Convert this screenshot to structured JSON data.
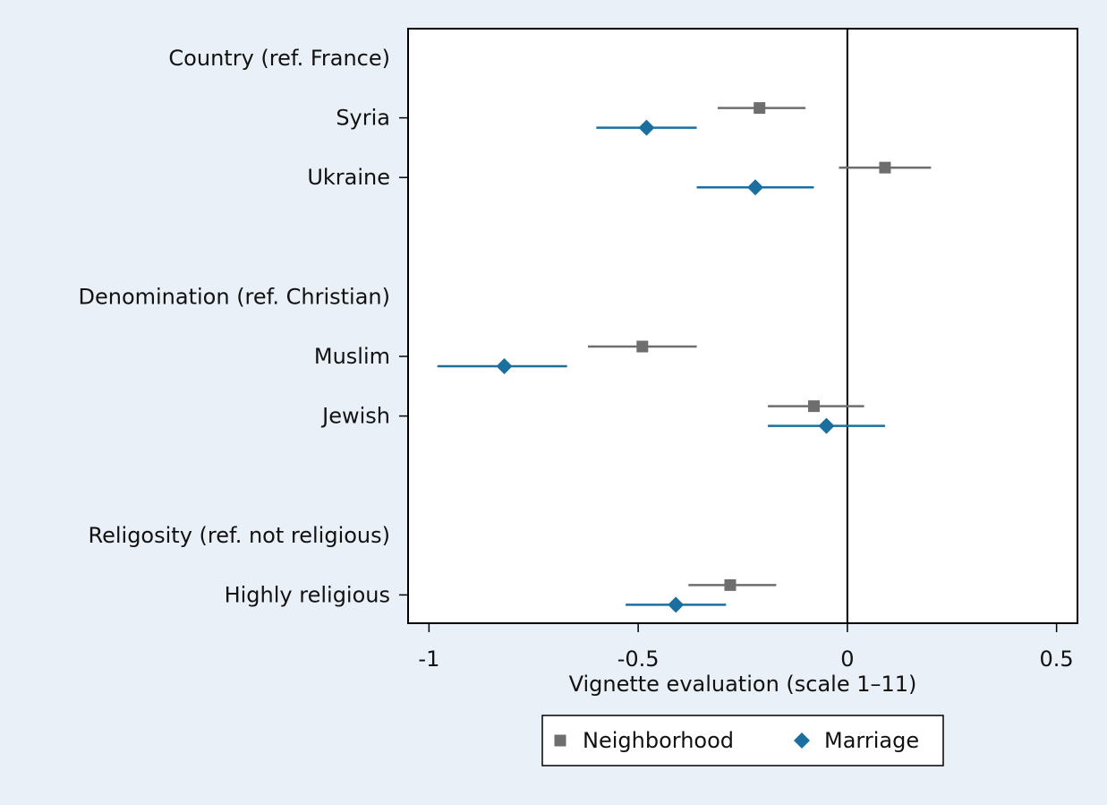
{
  "chart_data": {
    "type": "scatter",
    "subtype": "coefficient-plot",
    "xlabel": "Vignette evaluation (scale 1–11)",
    "xlim": [
      -1.05,
      0.55
    ],
    "xticks": [
      -1,
      -0.5,
      0,
      0.5
    ],
    "xtick_labels": [
      "-1",
      "-0.5",
      "0",
      "0.5"
    ],
    "reference_line": 0,
    "grid": false,
    "legend_position": "bottom-center",
    "rows": [
      {
        "label": "Country (ref. France)",
        "header": true
      },
      {
        "label": "Syria",
        "header": false
      },
      {
        "label": "Ukraine",
        "header": false
      },
      {
        "label": "",
        "spacer": true
      },
      {
        "label": "Denomination (ref. Christian)",
        "header": true
      },
      {
        "label": "Muslim",
        "header": false
      },
      {
        "label": "Jewish",
        "header": false
      },
      {
        "label": "",
        "spacer": true
      },
      {
        "label": "Religosity (ref. not religious)",
        "header": true
      },
      {
        "label": "Highly religious",
        "header": false
      }
    ],
    "series": [
      {
        "name": "Neighborhood",
        "marker": "square",
        "color": "#6e6e6e",
        "points": [
          {
            "row": 1,
            "estimate": -0.21,
            "ci": [
              -0.31,
              -0.1
            ]
          },
          {
            "row": 2,
            "estimate": 0.09,
            "ci": [
              -0.02,
              0.2
            ]
          },
          {
            "row": 5,
            "estimate": -0.49,
            "ci": [
              -0.62,
              -0.36
            ]
          },
          {
            "row": 6,
            "estimate": -0.08,
            "ci": [
              -0.19,
              0.04
            ]
          },
          {
            "row": 9,
            "estimate": -0.28,
            "ci": [
              -0.38,
              -0.17
            ]
          }
        ]
      },
      {
        "name": "Marriage",
        "marker": "diamond",
        "color": "#1a6f9e",
        "points": [
          {
            "row": 1,
            "estimate": -0.48,
            "ci": [
              -0.6,
              -0.36
            ]
          },
          {
            "row": 2,
            "estimate": -0.22,
            "ci": [
              -0.36,
              -0.08
            ]
          },
          {
            "row": 5,
            "estimate": -0.82,
            "ci": [
              -0.98,
              -0.67
            ]
          },
          {
            "row": 6,
            "estimate": -0.05,
            "ci": [
              -0.19,
              0.09
            ]
          },
          {
            "row": 9,
            "estimate": -0.41,
            "ci": [
              -0.53,
              -0.29
            ]
          }
        ]
      }
    ]
  }
}
